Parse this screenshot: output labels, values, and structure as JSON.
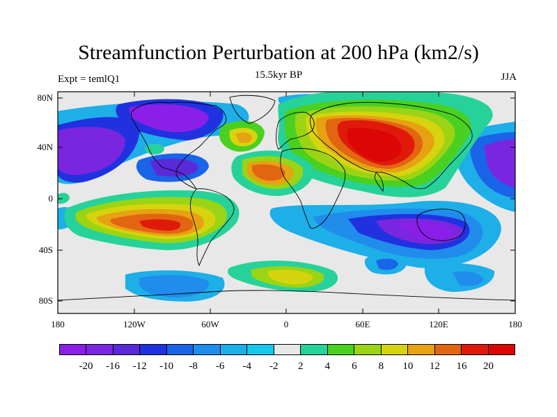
{
  "figure": {
    "title": "Streamfunction Perturbation at 200 hPa (km2/s)",
    "subtitle": "15.5kyr BP",
    "left_string": "Expt = temlQ1",
    "right_string": "JJA"
  },
  "map": {
    "projection": "cylindrical-equidistant",
    "lon_range": [
      -180,
      180
    ],
    "lat_range": [
      -90,
      90
    ],
    "lat_tick_labels": [
      "80N",
      "40N",
      "0",
      "40S",
      "80S"
    ],
    "lon_tick_labels": [
      "180",
      "120W",
      "60W",
      "0",
      "60E",
      "120E",
      "180"
    ]
  },
  "colorbar": {
    "labels": [
      "-20",
      "-16",
      "-12",
      "-10",
      "-8",
      "-6",
      "-4",
      "-2",
      "2",
      "4",
      "6",
      "8",
      "10",
      "12",
      "16",
      "20"
    ],
    "colors": [
      "#8a1fe8",
      "#7a26e0",
      "#5a2ad8",
      "#2032e0",
      "#1a64e8",
      "#208cec",
      "#1eaee8",
      "#16c8ea",
      "#e8e8e8",
      "#26d29a",
      "#4ad020",
      "#9ad414",
      "#d6d40e",
      "#e6a212",
      "#e26612",
      "#e01a0a",
      "#dc0606"
    ]
  }
}
